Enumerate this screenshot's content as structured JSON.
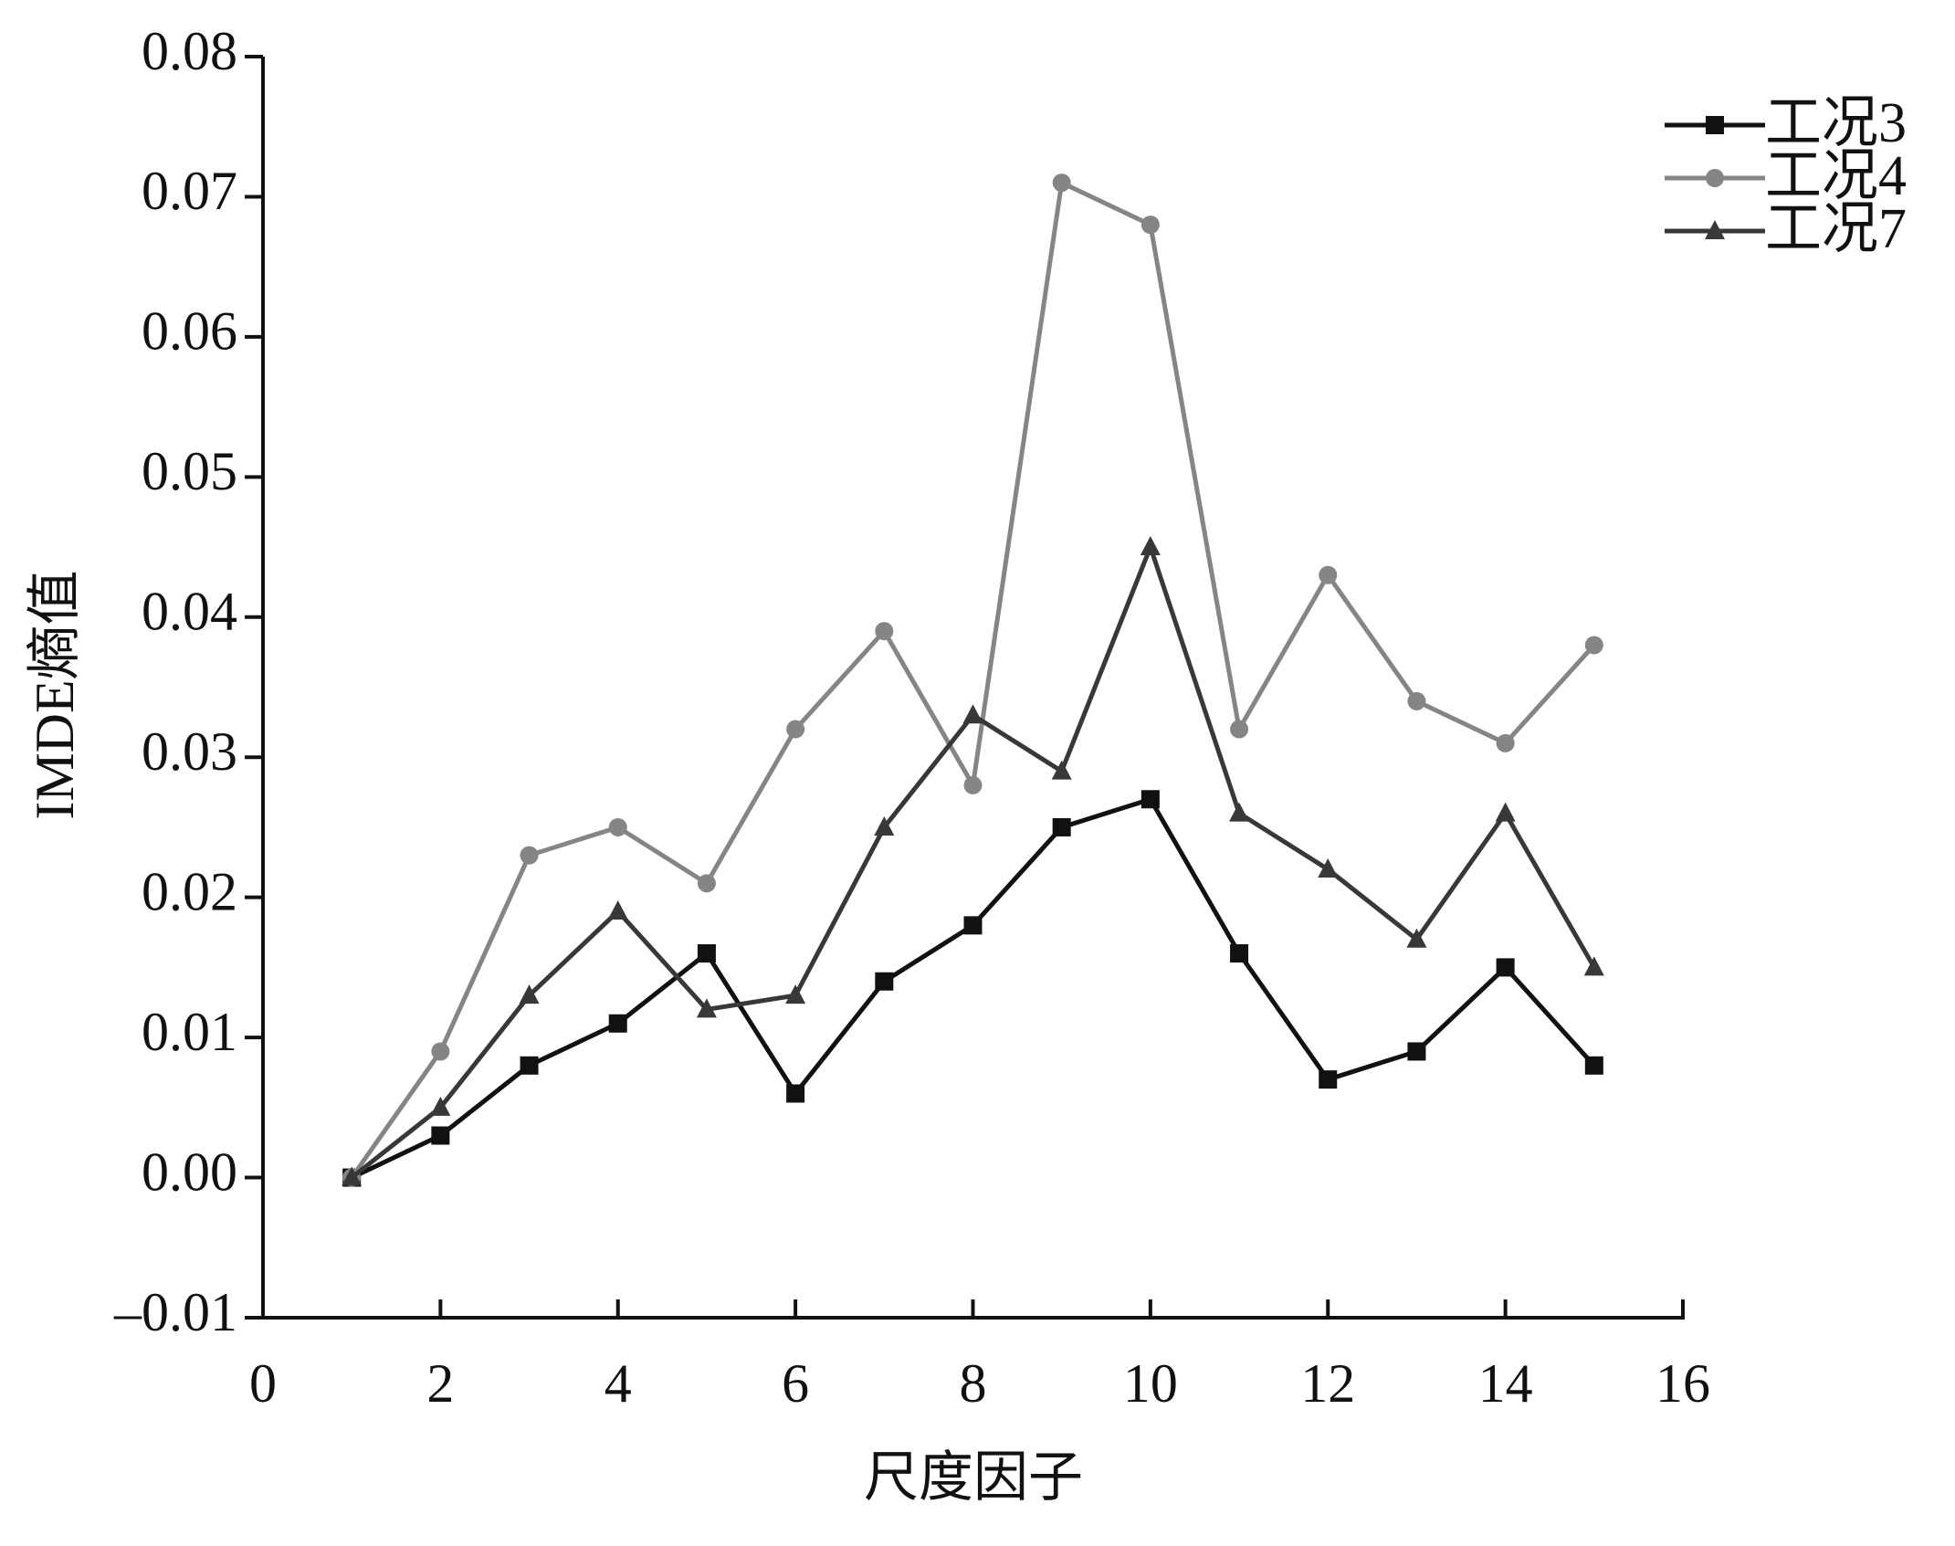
{
  "chart_data": {
    "type": "line",
    "x_label": "尺度因子",
    "y_label": "IMDE熵值",
    "x": [
      1,
      2,
      3,
      4,
      5,
      6,
      7,
      8,
      9,
      10,
      11,
      12,
      13,
      14,
      15
    ],
    "series": [
      {
        "name": "工况3",
        "color": "#111111",
        "marker": "square",
        "values": [
          0,
          0.003,
          0.008,
          0.011,
          0.016,
          0.006,
          0.014,
          0.018,
          0.025,
          0.027,
          0.016,
          0.007,
          0.009,
          0.015,
          0.008
        ]
      },
      {
        "name": "工况4",
        "color": "#858585",
        "marker": "circle",
        "values": [
          0,
          0.009,
          0.023,
          0.025,
          0.021,
          0.032,
          0.039,
          0.028,
          0.071,
          0.068,
          0.032,
          0.043,
          0.034,
          0.031,
          0.038
        ]
      },
      {
        "name": "工况7",
        "color": "#383838",
        "marker": "triangle",
        "values": [
          0,
          0.005,
          0.013,
          0.019,
          0.012,
          0.013,
          0.025,
          0.033,
          0.029,
          0.045,
          0.026,
          0.022,
          0.017,
          0.026,
          0.015
        ]
      }
    ],
    "xlim": [
      0,
      16
    ],
    "xticks": [
      0,
      2,
      4,
      6,
      8,
      10,
      12,
      14,
      16
    ],
    "ylim": [
      -0.01,
      0.08
    ],
    "yticks": [
      {
        "value": -0.01,
        "label": "–0.01"
      },
      {
        "value": 0,
        "label": "0.00"
      },
      0.01,
      0.02,
      0.03,
      0.04,
      0.05,
      0.06,
      0.07,
      0.08
    ],
    "legend": "top-right",
    "grid": false
  }
}
